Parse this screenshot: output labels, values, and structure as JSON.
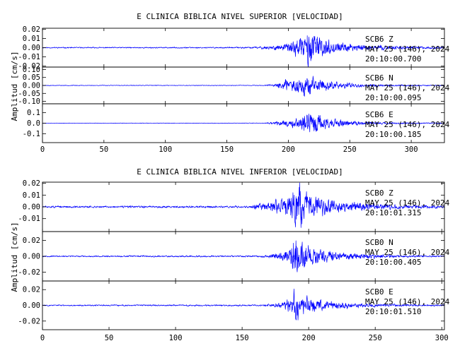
{
  "colors": {
    "trace": "#0000ff",
    "axes": "#000000"
  },
  "chart_data": [
    {
      "type": "line",
      "title": "E CLINICA BIBLICA NIVEL SUPERIOR [VELOCIDAD]",
      "ylabel": "Amplitud [cm/s]",
      "xlabel": "",
      "xlim": [
        0,
        327
      ],
      "xticks": [
        0,
        50,
        100,
        150,
        200,
        250,
        300
      ],
      "grid": false,
      "legend": "none",
      "panels": [
        {
          "station": "SCB6",
          "component": "Z",
          "date": "MAY 25 (146), 2024",
          "time": "20:10:00.700",
          "ylim": [
            -0.021,
            0.021
          ],
          "yticks": [
            "0.02",
            "0.01",
            "0.00",
            "-0.01",
            "-0.02"
          ],
          "yvals": [
            0.02,
            0.01,
            0.0,
            -0.01,
            -0.02
          ],
          "envelope": {
            "x": [
              0,
              160,
              175,
              195,
              212,
              216,
              222,
              240,
              270,
              300,
              327
            ],
            "y": [
              0.0006,
              0.0007,
              0.0012,
              0.003,
              0.011,
              0.02,
              0.012,
              0.005,
              0.0025,
              0.0015,
              0.001
            ]
          },
          "seed": 11
        },
        {
          "station": "SCB6",
          "component": "N",
          "date": "MAY 25 (146), 2024",
          "time": "20:10:00.095",
          "ylim": [
            -0.115,
            0.115
          ],
          "yticks": [
            "0.10",
            "0.05",
            "0.00",
            "-0.05",
            "-0.10"
          ],
          "yvals": [
            0.1,
            0.05,
            0.0,
            -0.05,
            -0.1
          ],
          "envelope": {
            "x": [
              0,
              180,
              188,
              195,
              205,
              215,
              222,
              235,
              260,
              290,
              327
            ],
            "y": [
              0.002,
              0.002,
              0.01,
              0.03,
              0.04,
              0.07,
              0.05,
              0.025,
              0.01,
              0.005,
              0.003
            ]
          },
          "seed": 23
        },
        {
          "station": "SCB6",
          "component": "E",
          "date": "MAY 25 (146), 2024",
          "time": "20:10:00.185",
          "ylim": [
            -0.185,
            0.185
          ],
          "yticks": [
            "0.1",
            "0.0",
            "-0.1"
          ],
          "yvals": [
            0.1,
            0.0,
            -0.1
          ],
          "envelope": {
            "x": [
              0,
              180,
              188,
              200,
              210,
              215,
              220,
              235,
              260,
              290,
              327
            ],
            "y": [
              0.002,
              0.003,
              0.015,
              0.03,
              0.06,
              0.14,
              0.1,
              0.04,
              0.015,
              0.008,
              0.005
            ]
          },
          "seed": 37
        }
      ]
    },
    {
      "type": "line",
      "title": "E CLINICA BIBLICA NIVEL INFERIOR [VELOCIDAD]",
      "ylabel": "Amplitud [cm/s]",
      "xlabel": "",
      "xlim": [
        0,
        302
      ],
      "xticks": [
        0,
        50,
        100,
        150,
        200,
        250,
        300
      ],
      "grid": false,
      "legend": "none",
      "panels": [
        {
          "station": "SCB0",
          "component": "Z",
          "date": "MAY 25 (146), 2024",
          "time": "20:10:01.315",
          "ylim": [
            -0.021,
            0.021
          ],
          "yticks": [
            "0.02",
            "0.01",
            "0.00",
            "-0.01"
          ],
          "yvals": [
            0.02,
            0.01,
            0.0,
            -0.01
          ],
          "envelope": {
            "x": [
              0,
              155,
              165,
              180,
              188,
              193,
              200,
              220,
              250,
              280,
              302
            ],
            "y": [
              0.0008,
              0.0009,
              0.003,
              0.006,
              0.012,
              0.02,
              0.011,
              0.005,
              0.0025,
              0.0015,
              0.001
            ]
          },
          "seed": 51
        },
        {
          "station": "SCB0",
          "component": "N",
          "date": "MAY 25 (146), 2024",
          "time": "20:10:00.405",
          "ylim": [
            -0.031,
            0.031
          ],
          "yticks": [
            "0.02",
            "0.00",
            "-0.02"
          ],
          "yvals": [
            0.02,
            0.0,
            -0.02
          ],
          "envelope": {
            "x": [
              0,
              160,
              175,
              185,
              189,
              193,
              200,
              215,
              240,
              270,
              302
            ],
            "y": [
              0.0008,
              0.001,
              0.003,
              0.008,
              0.025,
              0.02,
              0.012,
              0.006,
              0.003,
              0.0015,
              0.001
            ]
          },
          "seed": 67
        },
        {
          "station": "SCB0",
          "component": "E",
          "date": "MAY 25 (146), 2024",
          "time": "20:10:01.510",
          "ylim": [
            -0.031,
            0.031
          ],
          "yticks": [
            "0.02",
            "0.00",
            "-0.02"
          ],
          "yvals": [
            0.02,
            0.0,
            -0.02
          ],
          "envelope": {
            "x": [
              0,
              165,
              178,
              185,
              189,
              193,
              200,
              215,
              240,
              270,
              302
            ],
            "y": [
              0.0008,
              0.001,
              0.003,
              0.008,
              0.02,
              0.016,
              0.01,
              0.005,
              0.0025,
              0.0015,
              0.001
            ]
          },
          "seed": 83
        }
      ]
    }
  ]
}
